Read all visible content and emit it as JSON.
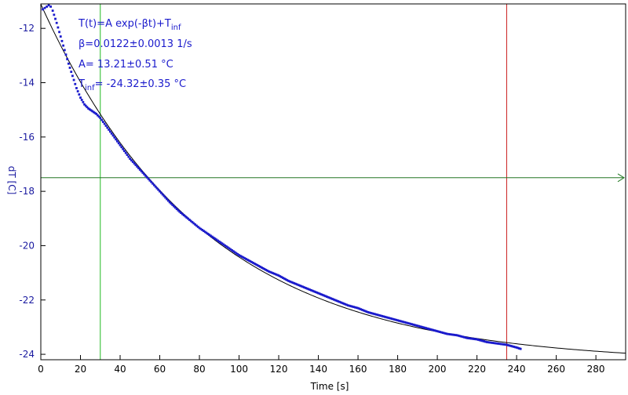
{
  "chart_data": {
    "type": "scatter",
    "xlabel": "Time [s]",
    "ylabel": "dT [C]",
    "xlim": [
      0,
      295
    ],
    "ylim": [
      -24.2,
      -11.1
    ],
    "x_ticks": [
      0,
      20,
      40,
      60,
      80,
      100,
      120,
      140,
      160,
      180,
      200,
      220,
      240,
      260,
      280
    ],
    "y_ticks": [
      -24,
      -22,
      -20,
      -18,
      -16,
      -14,
      -12
    ],
    "grid": false,
    "annotations": {
      "formula_main": "T(t)=A exp(-βt)+T",
      "formula_sub": "inf",
      "beta": "β=0.0122±0.0013 1/s",
      "amplitude": "A= 13.21±0.51 °C",
      "tinf_prefix": "T",
      "tinf_sub": "inf",
      "tinf_value": "= -24.32±0.35 °C"
    },
    "fit": {
      "A": 13.21,
      "beta": 0.0122,
      "T_inf": -24.32,
      "x_range": [
        0,
        295
      ],
      "color": "#000000"
    },
    "series": [
      {
        "kind": "measured-points",
        "color": "#1a1acc",
        "x": [
          1,
          2,
          3,
          4,
          5,
          6,
          8,
          10,
          12,
          14,
          16,
          18,
          20,
          22,
          24,
          26,
          28,
          30,
          35,
          40,
          45,
          50,
          55,
          60,
          65,
          70,
          75,
          80,
          85,
          90,
          95,
          100,
          105,
          110,
          115,
          120,
          125,
          130,
          135,
          140,
          145,
          150,
          155,
          160,
          165,
          170,
          175,
          180,
          185,
          190,
          195,
          200,
          205,
          210,
          215,
          220,
          225,
          230,
          235,
          240,
          242
        ],
        "y": [
          -11.3,
          -11.25,
          -11.2,
          -11.15,
          -11.2,
          -11.35,
          -11.8,
          -12.3,
          -12.8,
          -13.3,
          -13.75,
          -14.2,
          -14.55,
          -14.8,
          -14.95,
          -15.05,
          -15.15,
          -15.3,
          -15.8,
          -16.3,
          -16.8,
          -17.2,
          -17.6,
          -18.0,
          -18.4,
          -18.75,
          -19.05,
          -19.35,
          -19.6,
          -19.85,
          -20.1,
          -20.35,
          -20.55,
          -20.75,
          -20.95,
          -21.1,
          -21.3,
          -21.45,
          -21.6,
          -21.75,
          -21.9,
          -22.05,
          -22.2,
          -22.3,
          -22.45,
          -22.55,
          -22.65,
          -22.75,
          -22.85,
          -22.95,
          -23.05,
          -23.15,
          -23.25,
          -23.3,
          -23.4,
          -23.45,
          -23.55,
          -23.6,
          -23.65,
          -23.75,
          -23.8
        ]
      }
    ],
    "markers": {
      "green_vertical_x": 30,
      "red_vertical_x": 235,
      "green_horizontal_y": -17.5,
      "green_color": "#22bb22",
      "red_color": "#cc2222",
      "horizontal_color": "#227722"
    }
  }
}
